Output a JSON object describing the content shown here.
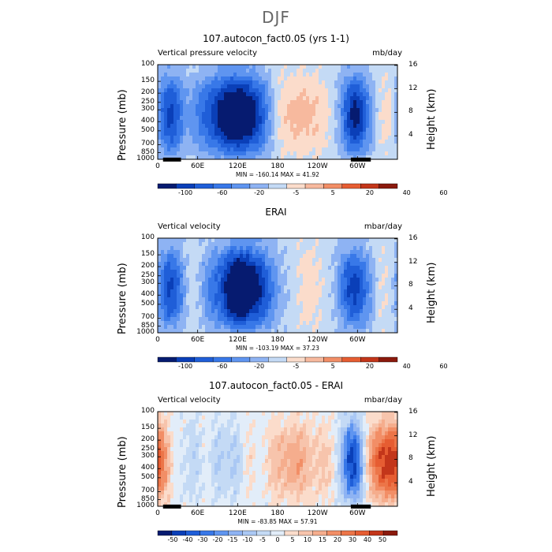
{
  "title": "DJF",
  "colors": {
    "levels12": [
      "#061b70",
      "#0a3fb8",
      "#1f5ed8",
      "#3878e8",
      "#5f95f0",
      "#8eb3f3",
      "#c4daf5",
      "#fbdccb",
      "#f7b99e",
      "#f28e66",
      "#e65d32",
      "#c3361a",
      "#8b1a0d"
    ],
    "levels22": [
      "#061b70",
      "#0a3fb8",
      "#1f5ed8",
      "#3878e8",
      "#5f95f0",
      "#8eb3f3",
      "#aac8f4",
      "#c4daf5",
      "#e2edf9",
      "#fbdccb",
      "#f7c4ac",
      "#f5ad8d",
      "#f28e66",
      "#ec7548",
      "#e65d32",
      "#c3361a",
      "#8b1a0d"
    ]
  },
  "chart_data": [
    {
      "type": "heatmap",
      "title": "107.autocon_fact0.05 (yrs 1-1)",
      "variable_label": "Vertical pressure velocity",
      "units": "mb/day",
      "ylabel": "Pressure (mb)",
      "ylabel_right": "Height (km)",
      "y_ticks": [
        100,
        150,
        200,
        250,
        300,
        400,
        500,
        700,
        850,
        1000
      ],
      "y_right_ticks": [
        16,
        12,
        8,
        4
      ],
      "x_ticks": [
        "0",
        "60E",
        "120E",
        "180",
        "120W",
        "60W"
      ],
      "x_tick_lon": [
        0,
        60,
        120,
        180,
        240,
        300
      ],
      "xlim": [
        0,
        360
      ],
      "ylim": [
        1000,
        100
      ],
      "min_max_text": "MIN = -160.14   MAX =  41.92",
      "colorbar_levels": [
        "-100",
        "-60",
        "-20",
        "-5",
        "5",
        "20",
        "40",
        "60"
      ],
      "colorbar_kind": "levels12",
      "features": [
        {
          "lon": 10,
          "amp": -40
        },
        {
          "lon": 25,
          "amp": -70
        },
        {
          "lon": 40,
          "amp": 25
        },
        {
          "lon": 55,
          "amp": -30
        },
        {
          "lon": 75,
          "amp": -40
        },
        {
          "lon": 95,
          "amp": -60
        },
        {
          "lon": 115,
          "amp": -90
        },
        {
          "lon": 135,
          "amp": -70
        },
        {
          "lon": 155,
          "amp": -50
        },
        {
          "lon": 190,
          "amp": 20
        },
        {
          "lon": 215,
          "amp": 25
        },
        {
          "lon": 240,
          "amp": 20
        },
        {
          "lon": 295,
          "amp": -100
        },
        {
          "lon": 320,
          "amp": -20
        },
        {
          "lon": 345,
          "amp": 30
        }
      ]
    },
    {
      "type": "heatmap",
      "title": "ERAI",
      "variable_label": "Vertical velocity",
      "units": "mbar/day",
      "ylabel": "Pressure (mb)",
      "ylabel_right": "Height (km)",
      "y_ticks": [
        100,
        150,
        200,
        250,
        300,
        400,
        500,
        700,
        850,
        1000
      ],
      "y_right_ticks": [
        16,
        12,
        8,
        4
      ],
      "x_ticks": [
        "0",
        "60E",
        "120E",
        "180",
        "120W",
        "60W"
      ],
      "x_tick_lon": [
        0,
        60,
        120,
        180,
        240,
        300
      ],
      "xlim": [
        0,
        360
      ],
      "ylim": [
        1000,
        100
      ],
      "min_max_text": "MIN = -103.19   MAX =  37.23",
      "colorbar_levels": [
        "-100",
        "-60",
        "-20",
        "-5",
        "5",
        "20",
        "40",
        "60"
      ],
      "colorbar_kind": "levels12",
      "features": [
        {
          "lon": 15,
          "amp": -40
        },
        {
          "lon": 30,
          "amp": -30
        },
        {
          "lon": 45,
          "amp": 15
        },
        {
          "lon": 80,
          "amp": -30
        },
        {
          "lon": 110,
          "amp": -60
        },
        {
          "lon": 130,
          "amp": -70
        },
        {
          "lon": 155,
          "amp": -50
        },
        {
          "lon": 180,
          "amp": -10
        },
        {
          "lon": 230,
          "amp": 15
        },
        {
          "lon": 290,
          "amp": -50
        },
        {
          "lon": 310,
          "amp": -25
        },
        {
          "lon": 340,
          "amp": 10
        }
      ]
    },
    {
      "type": "heatmap",
      "title": "107.autocon_fact0.05 - ERAI",
      "variable_label": "Vertical velocity",
      "units": "mbar/day",
      "ylabel": "Pressure (mb)",
      "ylabel_right": "Height (km)",
      "y_ticks": [
        100,
        150,
        200,
        250,
        300,
        400,
        500,
        700,
        850,
        1000
      ],
      "y_right_ticks": [
        16,
        12,
        8,
        4
      ],
      "x_ticks": [
        "0",
        "60E",
        "120E",
        "180",
        "120W",
        "60W"
      ],
      "x_tick_lon": [
        0,
        60,
        120,
        180,
        240,
        300
      ],
      "xlim": [
        0,
        360
      ],
      "ylim": [
        1000,
        100
      ],
      "min_max_text": "MIN = -83.85   MAX =  57.91",
      "colorbar_levels": [
        "-50",
        "-40",
        "-30",
        "-20",
        "-15",
        "-10",
        "-5",
        "0",
        "5",
        "10",
        "15",
        "20",
        "30",
        "40",
        "50"
      ],
      "colorbar_kind": "levels22",
      "features": [
        {
          "lon": 8,
          "amp": 40
        },
        {
          "lon": 25,
          "amp": -30
        },
        {
          "lon": 40,
          "amp": 30
        },
        {
          "lon": 55,
          "amp": -40
        },
        {
          "lon": 70,
          "amp": 30
        },
        {
          "lon": 90,
          "amp": -35
        },
        {
          "lon": 105,
          "amp": 35
        },
        {
          "lon": 118,
          "amp": -45
        },
        {
          "lon": 135,
          "amp": 35
        },
        {
          "lon": 150,
          "amp": -20
        },
        {
          "lon": 175,
          "amp": 20
        },
        {
          "lon": 210,
          "amp": 25
        },
        {
          "lon": 250,
          "amp": 15
        },
        {
          "lon": 295,
          "amp": -60
        },
        {
          "lon": 320,
          "amp": 30
        },
        {
          "lon": 345,
          "amp": 40
        }
      ]
    }
  ]
}
